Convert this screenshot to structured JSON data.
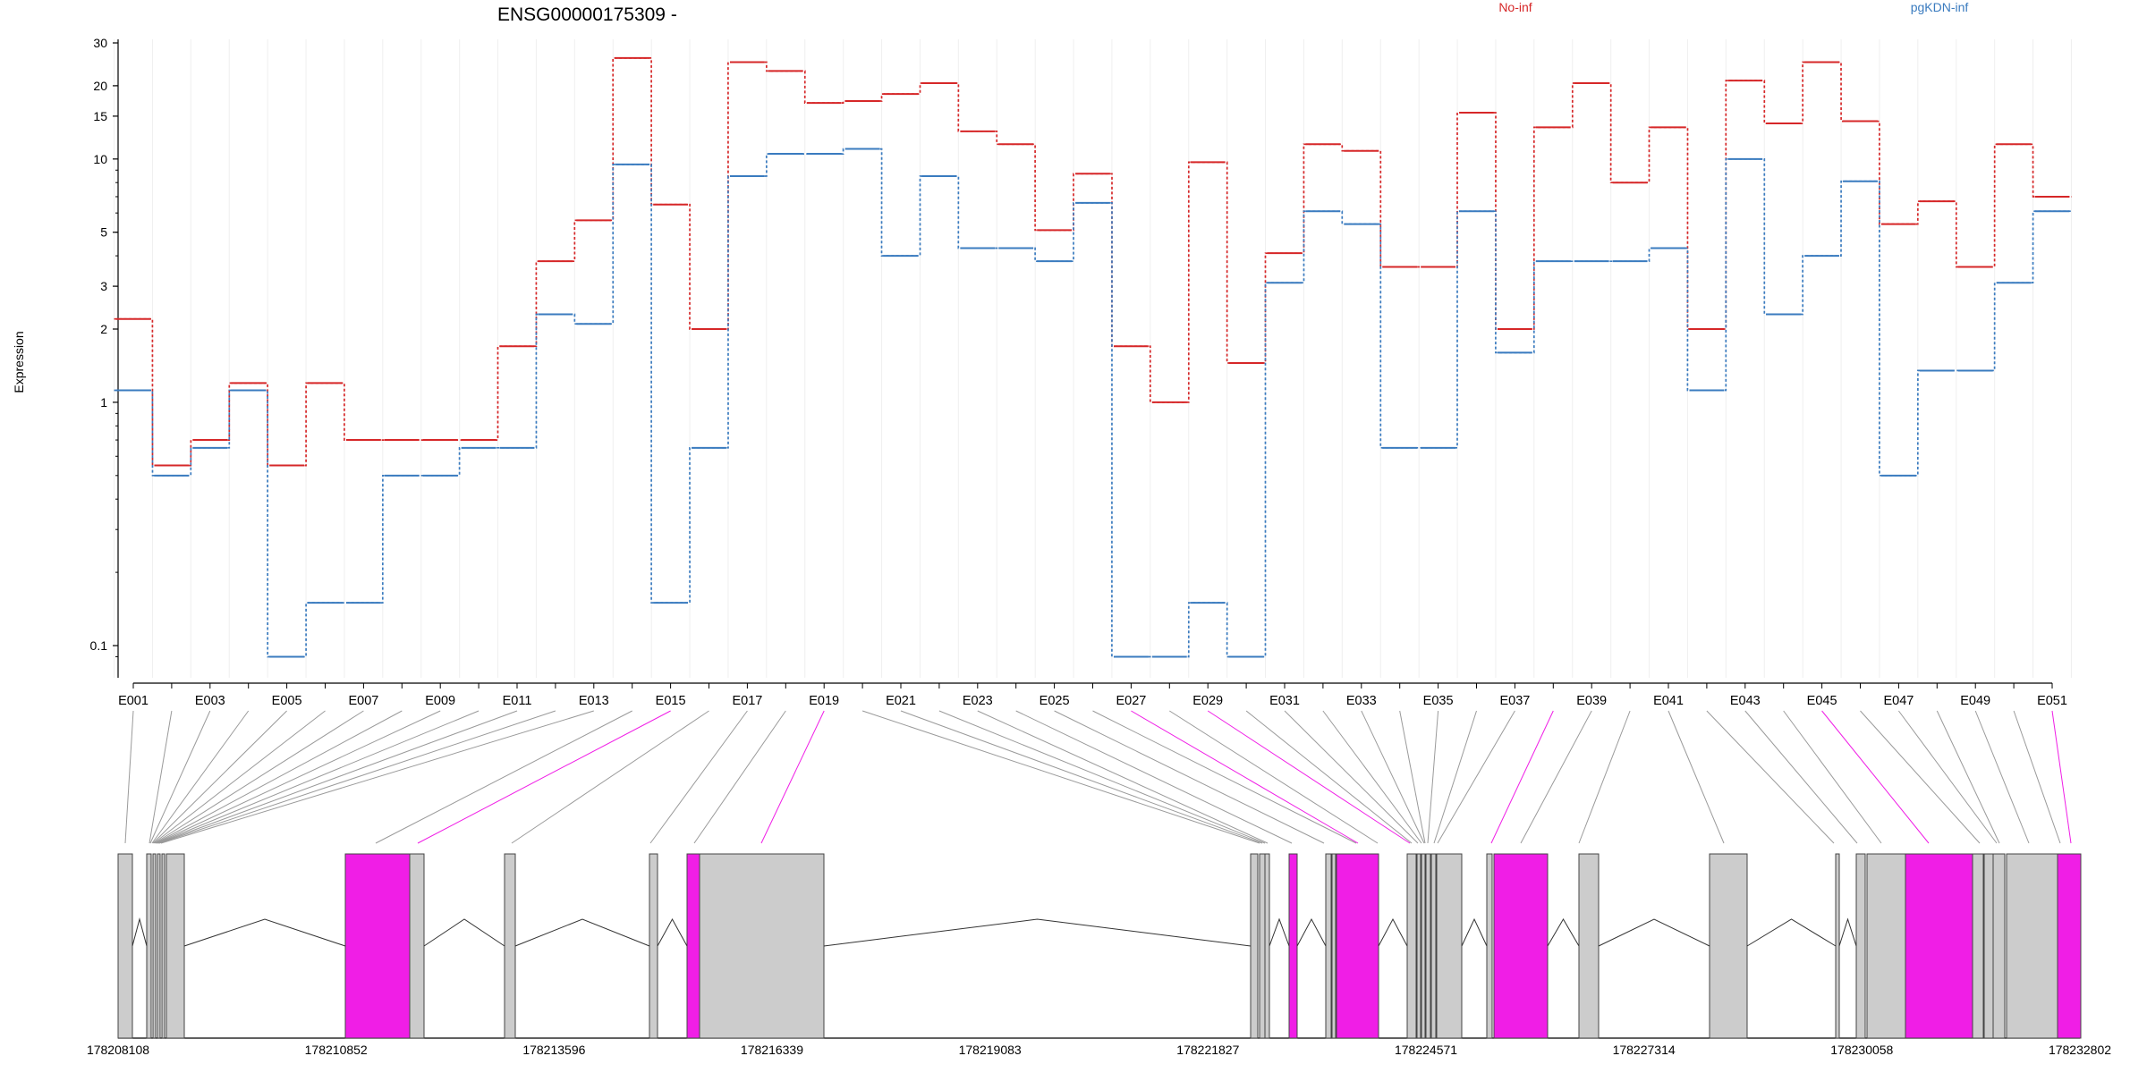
{
  "chart_data": {
    "type": "line",
    "title": "ENSG00000175309 -",
    "ylabel": "Expression",
    "yscale": "log",
    "ylim": [
      0.085,
      30
    ],
    "yticks": [
      0.1,
      1,
      2,
      3,
      5,
      10,
      15,
      20,
      30
    ],
    "categories": [
      "E001",
      "E002",
      "E003",
      "E004",
      "E005",
      "E006",
      "E007",
      "E008",
      "E009",
      "E010",
      "E011",
      "E012",
      "E013",
      "E014",
      "E015",
      "E016",
      "E017",
      "E018",
      "E019",
      "E020",
      "E021",
      "E022",
      "E023",
      "E024",
      "E025",
      "E026",
      "E027",
      "E028",
      "E029",
      "E030",
      "E031",
      "E032",
      "E033",
      "E034",
      "E035",
      "E036",
      "E037",
      "E038",
      "E039",
      "E040",
      "E041",
      "E042",
      "E043",
      "E044",
      "E045",
      "E046",
      "E047",
      "E048",
      "E049",
      "E050",
      "E051"
    ],
    "series": [
      {
        "name": "No-inf",
        "color": "#d62728",
        "values": [
          2.2,
          0.55,
          0.7,
          1.2,
          0.55,
          1.2,
          0.7,
          0.7,
          0.7,
          0.7,
          1.7,
          3.8,
          5.6,
          26,
          6.5,
          2.0,
          25,
          23,
          17,
          17.3,
          18.5,
          20.5,
          13,
          11.5,
          5.1,
          8.7,
          1.7,
          1.0,
          9.7,
          1.45,
          4.1,
          11.5,
          10.8,
          3.6,
          3.6,
          15.5,
          2.0,
          13.5,
          20.5,
          8.0,
          13.5,
          2.0,
          21,
          14,
          25,
          14.3,
          5.4,
          6.7,
          3.6,
          11.5,
          7.0
        ]
      },
      {
        "name": "pgKDN-inf",
        "color": "#3a7bbf",
        "values": [
          1.12,
          0.5,
          0.65,
          1.12,
          0.09,
          0.15,
          0.15,
          0.5,
          0.5,
          0.65,
          0.65,
          2.3,
          2.1,
          9.5,
          0.15,
          0.65,
          8.5,
          10.5,
          10.5,
          11,
          4.0,
          8.5,
          4.3,
          4.3,
          3.8,
          6.6,
          0.09,
          0.09,
          0.15,
          0.09,
          3.1,
          6.1,
          5.4,
          0.65,
          0.65,
          6.1,
          1.6,
          3.8,
          3.8,
          3.8,
          4.3,
          1.12,
          10,
          2.3,
          4.0,
          8.1,
          0.5,
          1.35,
          1.35,
          3.1,
          6.1
        ]
      }
    ],
    "legend": {
      "placement": "top-right",
      "entries": [
        "No-inf",
        "pgKDN-inf"
      ]
    },
    "exon_axis_labels": [
      "E001",
      "E003",
      "E005",
      "E007",
      "E009",
      "E011",
      "E013",
      "E015",
      "E017",
      "E019",
      "E021",
      "E023",
      "E025",
      "E027",
      "E029",
      "E031",
      "E033",
      "E035",
      "E037",
      "E039",
      "E041",
      "E043",
      "E045",
      "E047",
      "E049",
      "E051"
    ],
    "genomic_axis_labels": [
      "178208108",
      "178210852",
      "178213596",
      "178216339",
      "178219083",
      "178221827",
      "178224571",
      "178227314",
      "178230058",
      "178232802"
    ],
    "genomic_range": [
      178208108,
      178232802
    ],
    "highlighted_exons": [
      "E015",
      "E019",
      "E027",
      "E029",
      "E038",
      "E045",
      "E051"
    ],
    "highlight_color": "#f01ee6",
    "exon_color": "#cccccc"
  }
}
